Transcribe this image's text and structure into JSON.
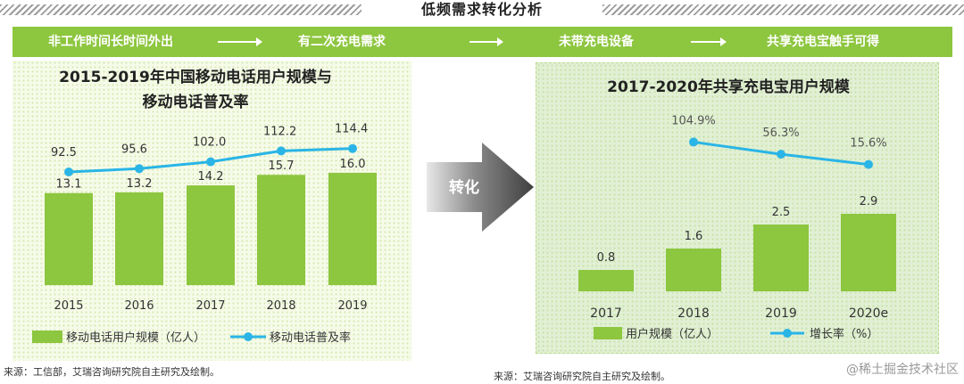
{
  "banner_title": "低频需求转化分析",
  "flow_steps": [
    "非工作时间长时间外出",
    "有二次充电需求",
    "未带充电设备",
    "共享充电宝触手可得"
  ],
  "conversion_label": "转化",
  "colors": {
    "bar": "#8dc63f",
    "line": "#2ab5e6",
    "banner": "#8dc63f"
  },
  "left_source": "来源：工信部，艾瑞咨询研究院自主研究及绘制。",
  "right_source": "来源：艾瑞咨询研究院自主研究及绘制。",
  "watermark": "@稀土掘金技术社区",
  "chart_data": [
    {
      "type": "bar",
      "title_line1": "2015-2019年中国移动电话用户规模与",
      "title_line2": "移动电话普及率",
      "categories": [
        "2015",
        "2016",
        "2017",
        "2018",
        "2019"
      ],
      "series": [
        {
          "name": "移动电话用户规模（亿人）",
          "type": "bar",
          "values": [
            13.1,
            13.2,
            14.2,
            15.7,
            16.0
          ],
          "labels": [
            "13.1",
            "13.2",
            "14.2",
            "15.7",
            "16.0"
          ]
        },
        {
          "name": "移动电话普及率",
          "type": "line",
          "values": [
            92.5,
            95.6,
            102.0,
            112.2,
            114.4
          ],
          "labels": [
            "92.5",
            "95.6",
            "102.0",
            "112.2",
            "114.4"
          ]
        }
      ],
      "legend": "bottom"
    },
    {
      "type": "bar",
      "title": "2017-2020年共享充电宝用户规模",
      "categories": [
        "2017",
        "2018",
        "2019",
        "2020e"
      ],
      "series": [
        {
          "name": "用户规模（亿人）",
          "type": "bar",
          "values": [
            0.8,
            1.6,
            2.5,
            2.9
          ],
          "labels": [
            "0.8",
            "1.6",
            "2.5",
            "2.9"
          ]
        },
        {
          "name": "增长率（%）",
          "type": "line",
          "x": [
            "2018",
            "2019",
            "2020e"
          ],
          "values": [
            104.9,
            56.3,
            15.6
          ],
          "labels": [
            "104.9%",
            "56.3%",
            "15.6%"
          ]
        }
      ],
      "legend": "bottom"
    }
  ]
}
